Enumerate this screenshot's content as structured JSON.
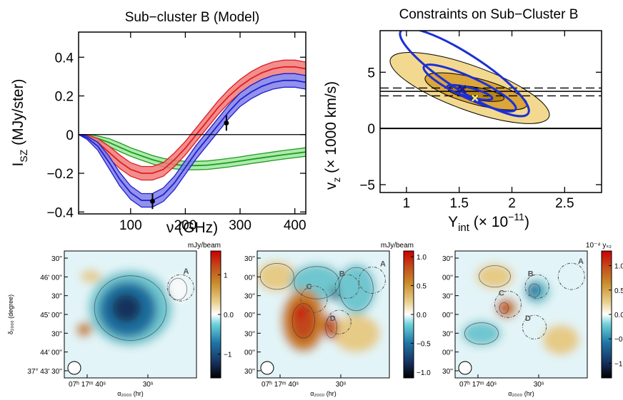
{
  "colors": {
    "red_band": "#f07a7a",
    "red_line": "#e01e1e",
    "blue_band": "#7f7fe8",
    "blue_line": "#1f1fd0",
    "green_band": "#9ee89e",
    "green_line": "#1f9a1f",
    "contour_outer": "#f2d98f",
    "contour_mid": "#dba63a",
    "contour_inner": "#b98416",
    "constraint_blue": "#1d2fd6"
  },
  "chart_data": [
    {
      "type": "line",
      "title": "Sub−cluster B (Model)",
      "xlabel": "ν (GHz)",
      "ylabel": "I",
      "ylabel_sub": "SZ",
      "ylabel_tail": " (MJy/ster)",
      "xlim": [
        5,
        420
      ],
      "ylim": [
        -0.41,
        0.53
      ],
      "xticks": [
        100,
        200,
        300,
        400
      ],
      "yticks": [
        -0.4,
        -0.2,
        0,
        0.2,
        0.4
      ],
      "ytick_labels": [
        "−0.4",
        "−0.2",
        "0",
        "0.2",
        "0.4"
      ],
      "series": [
        {
          "color_key": "red",
          "x": [
            5,
            20,
            40,
            60,
            80,
            100,
            120,
            140,
            160,
            180,
            200,
            220,
            240,
            260,
            280,
            300,
            320,
            340,
            360,
            380,
            400,
            420
          ],
          "y": [
            0,
            -0.01,
            -0.04,
            -0.09,
            -0.14,
            -0.18,
            -0.2,
            -0.2,
            -0.18,
            -0.13,
            -0.07,
            0.0,
            0.07,
            0.14,
            0.2,
            0.25,
            0.29,
            0.32,
            0.34,
            0.35,
            0.35,
            0.34
          ],
          "band": 0.035
        },
        {
          "color_key": "blue",
          "x": [
            5,
            20,
            40,
            60,
            80,
            100,
            120,
            140,
            160,
            180,
            200,
            220,
            240,
            260,
            280,
            300,
            320,
            340,
            360,
            380,
            400,
            420
          ],
          "y": [
            0,
            -0.015,
            -0.06,
            -0.14,
            -0.23,
            -0.3,
            -0.34,
            -0.34,
            -0.31,
            -0.25,
            -0.17,
            -0.09,
            -0.02,
            0.05,
            0.12,
            0.18,
            0.22,
            0.25,
            0.27,
            0.28,
            0.28,
            0.27
          ],
          "band": 0.035
        },
        {
          "color_key": "green",
          "x": [
            5,
            20,
            40,
            60,
            80,
            100,
            120,
            140,
            160,
            180,
            200,
            220,
            240,
            260,
            280,
            300,
            320,
            340,
            360,
            380,
            400,
            420
          ],
          "y": [
            0,
            -0.005,
            -0.02,
            -0.04,
            -0.065,
            -0.09,
            -0.11,
            -0.13,
            -0.145,
            -0.155,
            -0.16,
            -0.16,
            -0.158,
            -0.152,
            -0.145,
            -0.137,
            -0.128,
            -0.12,
            -0.112,
            -0.104,
            -0.097,
            -0.09
          ],
          "band": 0.022
        }
      ],
      "points": [
        {
          "x": 140,
          "y": -0.345,
          "err": 0.04
        },
        {
          "x": 275,
          "y": 0.06,
          "err": 0.04
        }
      ]
    },
    {
      "type": "contour",
      "title": "Constraints on Sub−Cluster B",
      "xlabel": "Y",
      "xlabel_sub": "int",
      "xlabel_tail": " (× 10",
      "xlabel_sup": "−11",
      "xlabel_end": ")",
      "ylabel": "v",
      "ylabel_sub": "z",
      "ylabel_tail": " (× 1000 km/s)",
      "xlim": [
        0.75,
        2.85
      ],
      "ylim": [
        -5.7,
        8.7
      ],
      "xticks": [
        1,
        1.5,
        2,
        2.5
      ],
      "xtick_labels": [
        "1",
        "1.5",
        "2",
        "2.5"
      ],
      "yticks": [
        -5,
        0,
        5
      ],
      "ytick_labels": [
        "−5",
        "0",
        "5"
      ],
      "hlines": {
        "solid": [
          0,
          3.3
        ],
        "dashed": [
          2.9,
          3.6
        ]
      },
      "filled_levels": [
        {
          "cx": 1.6,
          "cy": 3.6,
          "rx": 0.8,
          "ry": 3.6,
          "rot": 20
        },
        {
          "cx": 1.66,
          "cy": 3.3,
          "rx": 0.5,
          "ry": 2.1,
          "rot": 15
        },
        {
          "cx": 1.66,
          "cy": 3.1,
          "rx": 0.27,
          "ry": 1.0,
          "rot": 10
        }
      ],
      "blue_levels": [
        {
          "cx": 1.55,
          "cy": 5.0,
          "rx": 0.72,
          "ry": 2.9,
          "rot": 33
        },
        {
          "cx": 1.6,
          "cy": 3.6,
          "rx": 0.48,
          "ry": 1.7,
          "rot": 25
        },
        {
          "cx": 1.6,
          "cy": 3.2,
          "rx": 0.22,
          "ry": 0.75,
          "rot": 15
        }
      ],
      "best_fit_blue": {
        "x": 1.53,
        "y": 3.5
      },
      "best_fit_yellow": {
        "x": 1.65,
        "y": 2.7
      }
    }
  ],
  "maps": [
    {
      "unit_label": "mJy/beam",
      "colorbar_ticks": [
        "1",
        "0.0",
        "−1"
      ],
      "colorbar_tick_values": [
        1,
        0,
        -1
      ],
      "colorbar_range": [
        -1.6,
        1.6
      ],
      "show_ylabels": true,
      "yticks": [
        "30''",
        "46' 00''",
        "30''",
        "45' 00''",
        "30''",
        "44' 00''",
        "37° 43' 30''"
      ],
      "xticks": [
        "07ʰ 17ᵐ 40ˢ",
        "30ˢ"
      ],
      "xlabel": "α₂₀₀₀ (hr)",
      "ylabel": "δ₂₀₀₀ (degree)",
      "region_labels": [
        "A"
      ]
    },
    {
      "unit_label": "mJy/beam",
      "colorbar_ticks": [
        "1.0",
        "0.5",
        "0.0",
        "−0.5",
        "−1.0"
      ],
      "colorbar_tick_values": [
        1.0,
        0.5,
        0.0,
        -0.5,
        -1.0
      ],
      "colorbar_range": [
        -1.1,
        1.1
      ],
      "show_ylabels": false,
      "yticks": [
        "30''",
        "00''",
        "30''",
        "00''",
        "30''",
        "00''",
        "30''"
      ],
      "xticks": [
        "07ʰ 17ᵐ 40ˢ",
        "30ˢ"
      ],
      "xlabel": "α₂₀₀₀ (hr)",
      "region_labels": [
        "A",
        "B",
        "C",
        "D"
      ]
    },
    {
      "unit_label": "10⁻⁴ yₛ₂",
      "colorbar_ticks": [
        "1.0",
        "0.5",
        "0.0",
        "−0.5",
        "−1.0"
      ],
      "colorbar_tick_values": [
        1.0,
        0.5,
        0.0,
        -0.5,
        -1.0
      ],
      "colorbar_range": [
        -1.3,
        1.3
      ],
      "show_ylabels": false,
      "yticks": [
        "30''",
        "00''",
        "30''",
        "00''",
        "30''",
        "00''",
        "30''"
      ],
      "xticks": [
        "07ʰ 17ᵐ 40ˢ",
        "30ˢ"
      ],
      "xlabel": "α₂₀₀₀ (hr)",
      "region_labels": [
        "A",
        "B",
        "C",
        "D"
      ]
    }
  ]
}
